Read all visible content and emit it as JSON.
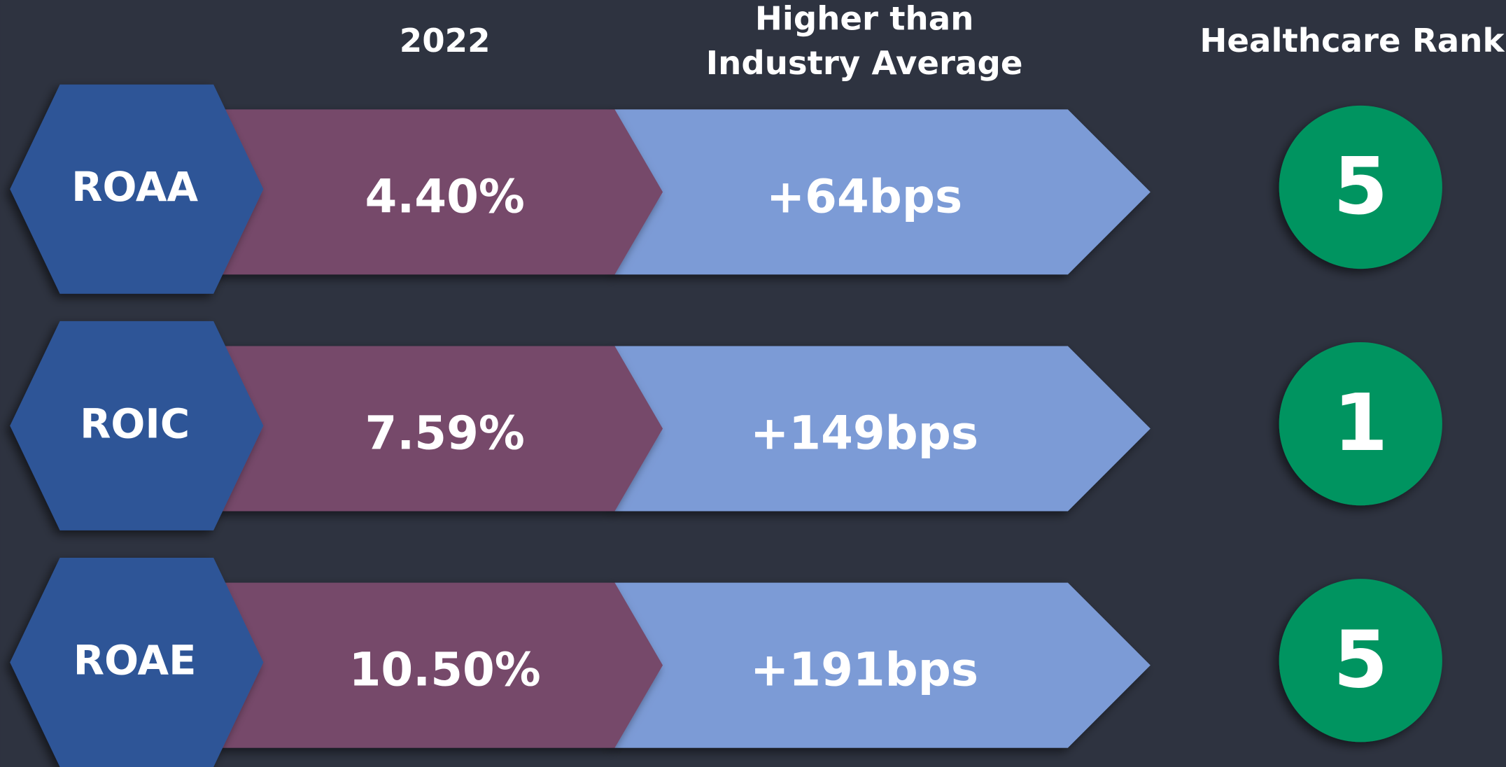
{
  "headers": {
    "year": "2022",
    "comparison": [
      "Higher than",
      "Industry Average"
    ],
    "rank": "Healthcare Rank"
  },
  "rows": [
    {
      "metric": "ROAA",
      "value": "4.40%",
      "difference": "+64bps",
      "rank": 5
    },
    {
      "metric": "ROIC",
      "value": "7.59%",
      "difference": "+149bps",
      "rank": 1
    },
    {
      "metric": "ROAE",
      "value": "10.50%",
      "difference": "+191bps",
      "rank": 5
    }
  ]
}
